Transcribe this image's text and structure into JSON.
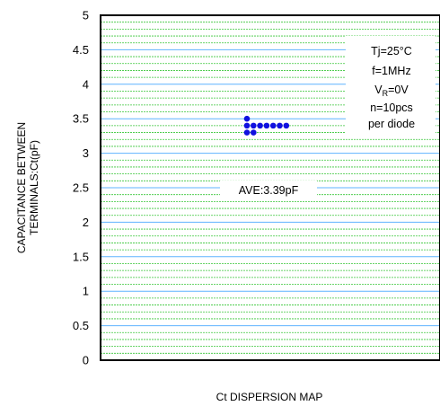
{
  "chart_data": {
    "type": "scatter",
    "title": "",
    "xlabel": "Ct DISPERSION MAP",
    "ylabel_lines": [
      "CAPACITANCE BETWEEN",
      "TERMINALS:Ct(pF)"
    ],
    "ylim": [
      0,
      5
    ],
    "y_ticks": [
      "0",
      "0.5",
      "1",
      "1.5",
      "2",
      "2.5",
      "3",
      "3.5",
      "4",
      "4.5",
      "5"
    ],
    "grid": {
      "major_step": 0.5,
      "minor_step": 0.1,
      "major_color": "#5fb3ff",
      "minor_color": "#39c639"
    },
    "point_color": "#1010e0",
    "conditions": {
      "tj": "Tj=25°C",
      "freq": "f=1MHz",
      "vr_main": "V",
      "vr_sub": "R",
      "vr_rest": "=0V",
      "n": "n=10pcs",
      "per": "per diode"
    },
    "average_label": "AVE:3.39pF",
    "points": [
      {
        "y": 3.5,
        "col": 0
      },
      {
        "y": 3.4,
        "col": 0
      },
      {
        "y": 3.4,
        "col": 1
      },
      {
        "y": 3.4,
        "col": 2
      },
      {
        "y": 3.4,
        "col": 3
      },
      {
        "y": 3.4,
        "col": 4
      },
      {
        "y": 3.4,
        "col": 5
      },
      {
        "y": 3.4,
        "col": 6
      },
      {
        "y": 3.3,
        "col": 0
      },
      {
        "y": 3.3,
        "col": 1
      }
    ]
  }
}
